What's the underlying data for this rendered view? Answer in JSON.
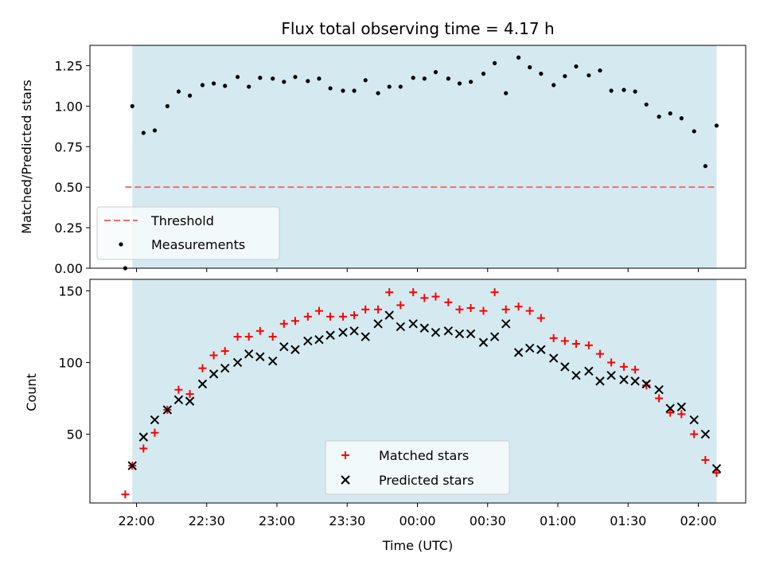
{
  "chart_data": [
    {
      "type": "scatter",
      "title": "Flux total observing time = 4.17 h",
      "xlabel": "",
      "ylabel": "Matched/Predicted stars",
      "ylim": [
        0,
        1.375
      ],
      "yticks": [
        "0.00",
        "0.25",
        "0.50",
        "0.75",
        "1.00",
        "1.25"
      ],
      "x_unit": "hours after 22:00 UTC",
      "shaded_range": [
        -0.03,
        4.13
      ],
      "shade_color": "#d4eaf0",
      "threshold": {
        "name": "Threshold",
        "value": 0.5,
        "color": "#f07070",
        "x_range": [
          -0.08,
          4.13
        ]
      },
      "series": [
        {
          "name": "Measurements",
          "color": "#000000",
          "marker": "dot",
          "x": [
            -0.08,
            -0.03,
            0.05,
            0.13,
            0.22,
            0.3,
            0.38,
            0.47,
            0.55,
            0.63,
            0.72,
            0.8,
            0.88,
            0.97,
            1.05,
            1.13,
            1.22,
            1.3,
            1.38,
            1.47,
            1.55,
            1.63,
            1.72,
            1.8,
            1.88,
            1.97,
            2.05,
            2.13,
            2.22,
            2.3,
            2.38,
            2.47,
            2.55,
            2.63,
            2.72,
            2.8,
            2.88,
            2.97,
            3.05,
            3.13,
            3.22,
            3.3,
            3.38,
            3.47,
            3.55,
            3.63,
            3.72,
            3.8,
            3.88,
            3.97,
            4.05,
            4.13
          ],
          "y": [
            0.0,
            1.0,
            0.835,
            0.85,
            1.0,
            1.09,
            1.065,
            1.13,
            1.14,
            1.125,
            1.18,
            1.12,
            1.175,
            1.17,
            1.15,
            1.18,
            1.155,
            1.17,
            1.11,
            1.095,
            1.095,
            1.16,
            1.08,
            1.12,
            1.12,
            1.175,
            1.17,
            1.21,
            1.17,
            1.14,
            1.15,
            1.2,
            1.265,
            1.08,
            1.3,
            1.24,
            1.2,
            1.13,
            1.185,
            1.245,
            1.19,
            1.22,
            1.095,
            1.1,
            1.09,
            1.01,
            0.935,
            0.955,
            0.925,
            0.845,
            0.63,
            0.88
          ]
        }
      ]
    },
    {
      "type": "scatter",
      "title": "",
      "xlabel": "Time (UTC)",
      "ylabel": "Count",
      "ylim": [
        2,
        158
      ],
      "yticks": [
        "50",
        "100",
        "150"
      ],
      "xticks": [
        "22:00",
        "22:30",
        "23:00",
        "23:30",
        "00:00",
        "00:30",
        "01:00",
        "01:30",
        "02:00"
      ],
      "x_unit": "hours after 22:00 UTC",
      "shaded_range": [
        -0.03,
        4.13
      ],
      "shade_color": "#d4eaf0",
      "series": [
        {
          "name": "Matched stars",
          "color": "#ff0000",
          "marker": "plus",
          "x": [
            -0.08,
            -0.03,
            0.05,
            0.13,
            0.22,
            0.3,
            0.38,
            0.47,
            0.55,
            0.63,
            0.72,
            0.8,
            0.88,
            0.97,
            1.05,
            1.13,
            1.22,
            1.3,
            1.38,
            1.47,
            1.55,
            1.63,
            1.72,
            1.8,
            1.88,
            1.97,
            2.05,
            2.13,
            2.22,
            2.3,
            2.38,
            2.47,
            2.55,
            2.63,
            2.72,
            2.8,
            2.88,
            2.97,
            3.05,
            3.13,
            3.22,
            3.3,
            3.38,
            3.47,
            3.55,
            3.63,
            3.72,
            3.8,
            3.88,
            3.97,
            4.05,
            4.13
          ],
          "y": [
            8,
            28,
            40,
            51,
            67,
            81,
            78,
            96,
            105,
            108,
            118,
            118,
            122,
            118,
            127,
            129,
            132,
            136,
            132,
            132,
            133,
            137,
            137,
            149,
            140,
            149,
            145,
            146,
            142,
            137,
            138,
            136,
            149,
            137,
            139,
            136,
            131,
            117,
            115,
            113,
            112,
            106,
            100,
            97,
            95,
            84,
            75,
            65,
            64,
            50,
            32,
            23
          ]
        },
        {
          "name": "Predicted stars",
          "color": "#000000",
          "marker": "x",
          "x": [
            -0.03,
            0.05,
            0.13,
            0.22,
            0.3,
            0.38,
            0.47,
            0.55,
            0.63,
            0.72,
            0.8,
            0.88,
            0.97,
            1.05,
            1.13,
            1.22,
            1.3,
            1.38,
            1.47,
            1.55,
            1.63,
            1.72,
            1.8,
            1.88,
            1.97,
            2.05,
            2.13,
            2.22,
            2.3,
            2.38,
            2.47,
            2.55,
            2.63,
            2.72,
            2.8,
            2.88,
            2.97,
            3.05,
            3.13,
            3.22,
            3.3,
            3.38,
            3.47,
            3.55,
            3.63,
            3.72,
            3.8,
            3.88,
            3.97,
            4.05,
            4.13
          ],
          "y": [
            28,
            48,
            60,
            67,
            74,
            73,
            85,
            92,
            96,
            100,
            106,
            104,
            101,
            111,
            109,
            115,
            116,
            119,
            121,
            122,
            118,
            127,
            133,
            125,
            127,
            124,
            121,
            122,
            120,
            120,
            114,
            118,
            127,
            107,
            110,
            109,
            103,
            97,
            91,
            94,
            87,
            91,
            88,
            87,
            85,
            81,
            68,
            69,
            60,
            50,
            26
          ]
        }
      ]
    }
  ]
}
